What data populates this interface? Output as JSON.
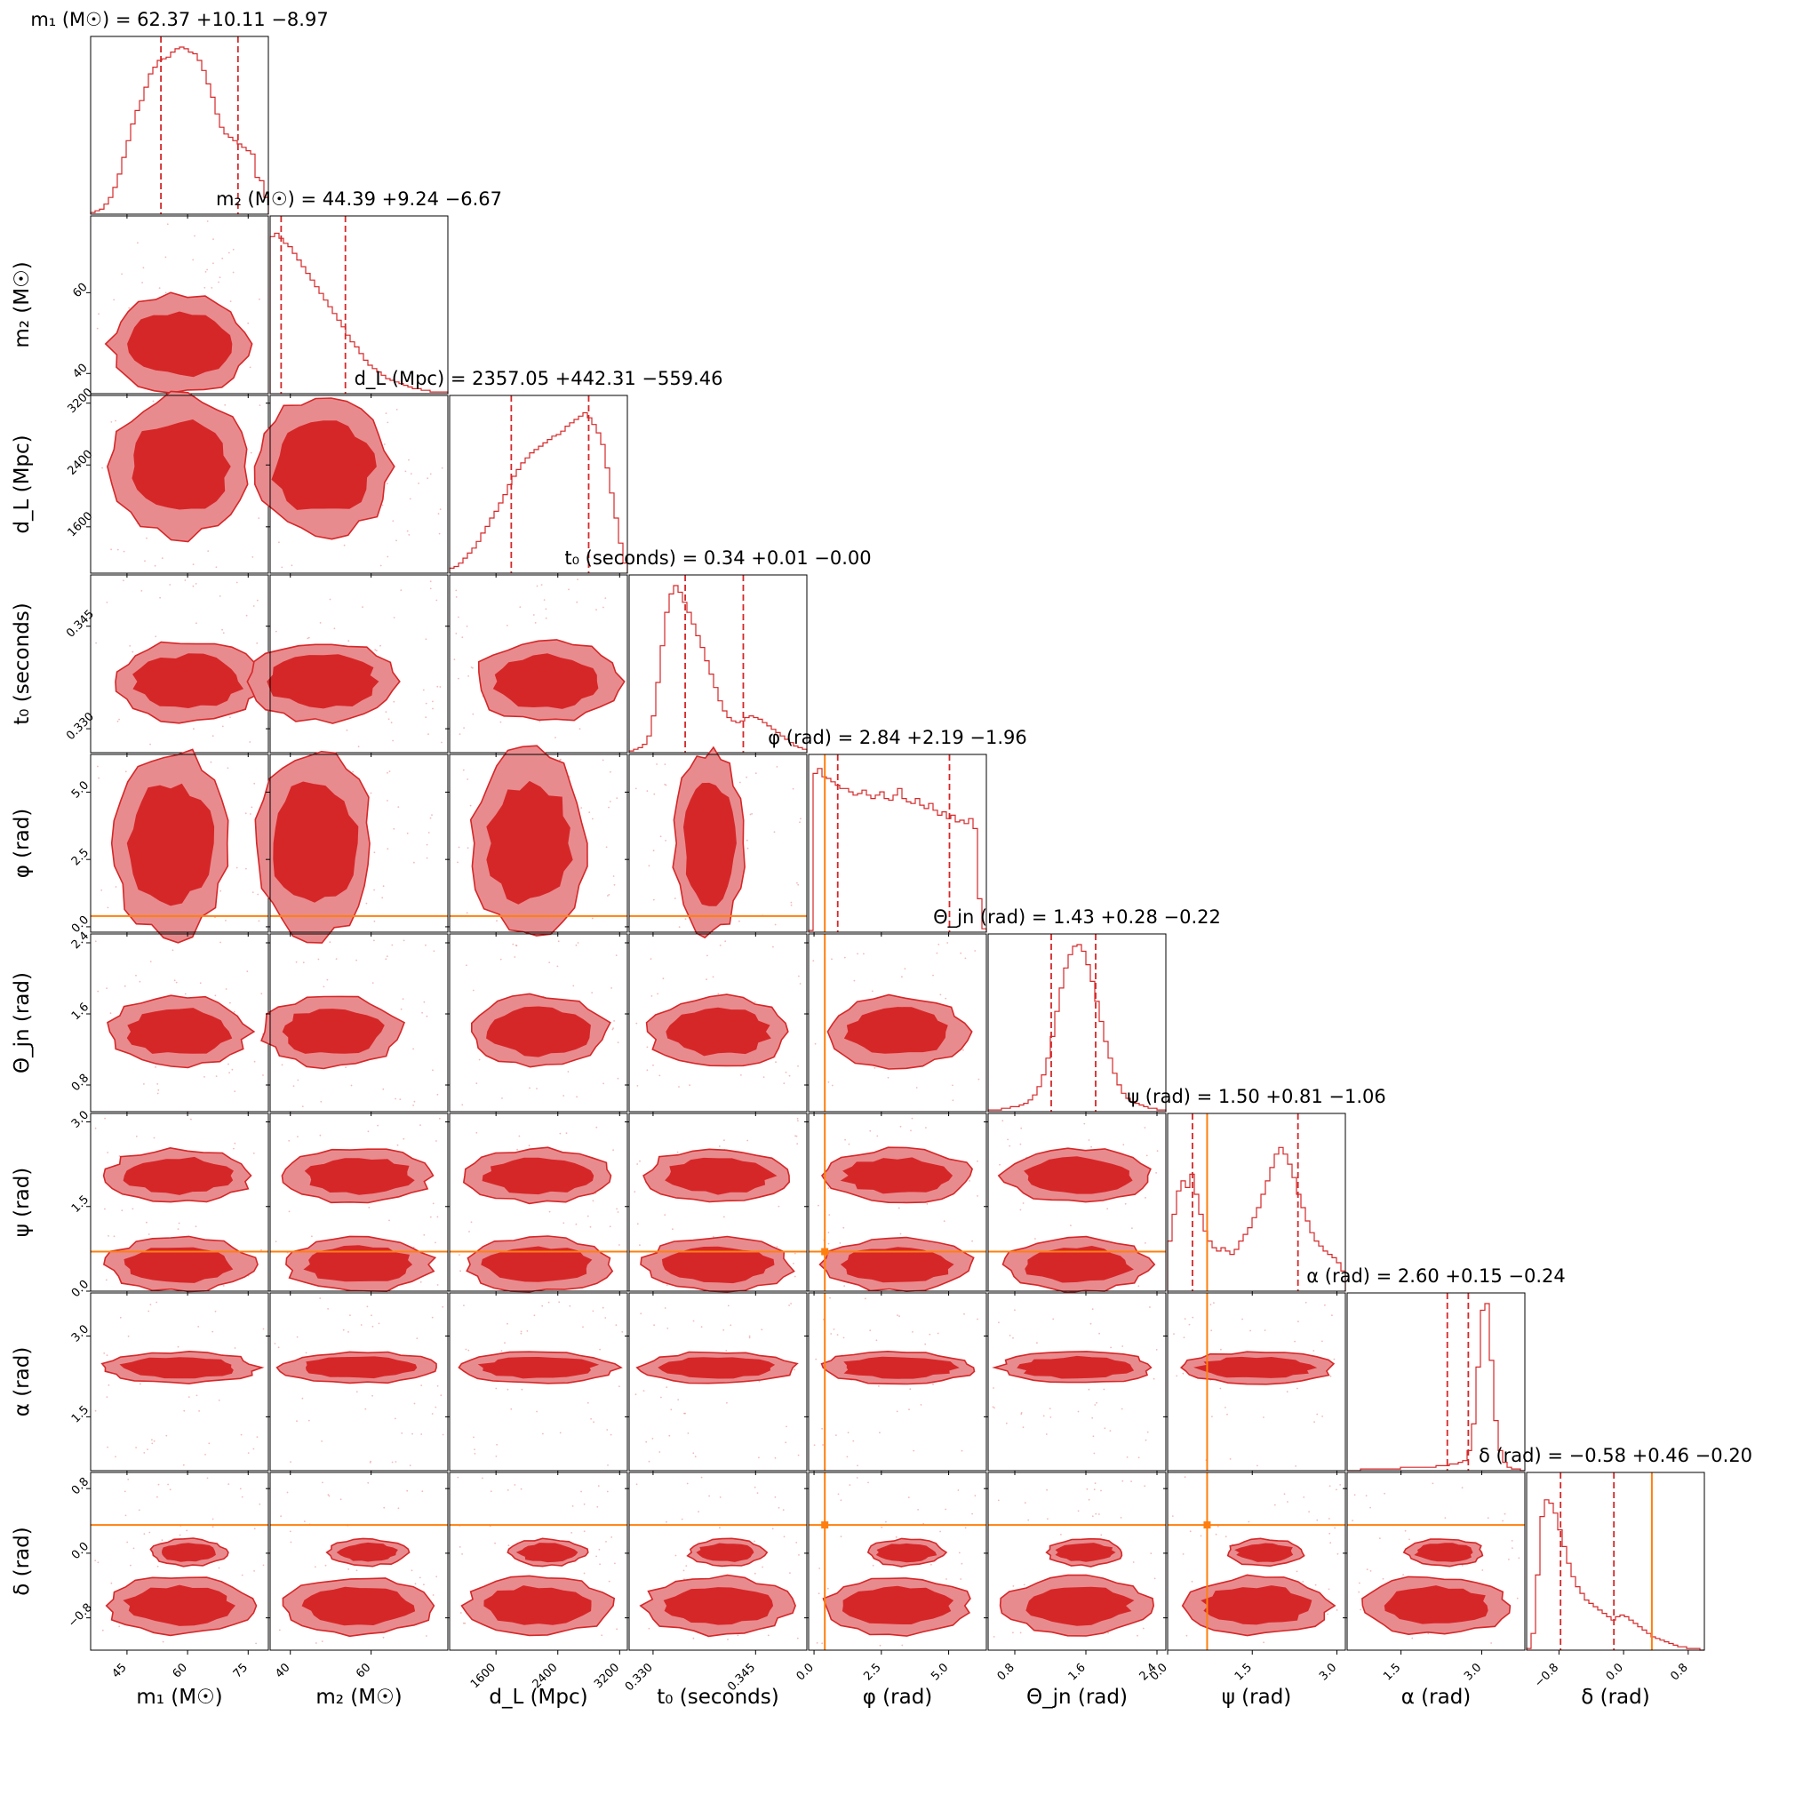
{
  "chart_data": {
    "type": "corner",
    "colors": {
      "posterior": "#d62728",
      "posterior_light": "#e88b8e",
      "truth": "#ff7f0e"
    },
    "parameters": [
      {
        "key": "m1",
        "label": "m₁ (M☉)",
        "title": "m₁ (M☉) = 62.37 +10.11 −8.97",
        "range": [
          36,
          80
        ],
        "ticks": [
          "45",
          "60",
          "75"
        ],
        "tick_values": [
          45,
          60,
          75
        ],
        "median": 62.37,
        "quantile_low": 53.4,
        "quantile_high": 72.48,
        "truth": null
      },
      {
        "key": "m2",
        "label": "m₂ (M☉)",
        "title": "m₂ (M☉) = 44.39 +9.24 −6.67",
        "range": [
          35,
          79
        ],
        "ticks": [
          "40",
          "60"
        ],
        "tick_values": [
          40,
          60
        ],
        "median": 44.39,
        "quantile_low": 37.72,
        "quantile_high": 53.63,
        "truth": null
      },
      {
        "key": "dL",
        "label": "d_L (Mpc)",
        "title": "d_L (Mpc) = 2357.05 +442.31 −559.46",
        "range": [
          1000,
          3300
        ],
        "ticks": [
          "1600",
          "2400",
          "3200"
        ],
        "tick_values": [
          1600,
          2400,
          3200
        ],
        "median": 2357.05,
        "quantile_low": 1797.59,
        "quantile_high": 2799.36,
        "truth": null
      },
      {
        "key": "t0",
        "label": "t₀ (seconds)",
        "title": "t₀ (seconds) = 0.34 +0.01 −0.00",
        "range": [
          0.3265,
          0.3525
        ],
        "ticks": [
          "0.330",
          "0.345"
        ],
        "tick_values": [
          0.33,
          0.345
        ],
        "median": 0.34,
        "quantile_low": 0.3347,
        "quantile_high": 0.3432,
        "truth": null
      },
      {
        "key": "phi",
        "label": "φ (rad)",
        "title": "φ (rad) = 2.84 +2.19 −1.96",
        "range": [
          -0.2,
          6.4
        ],
        "ticks": [
          "0.0",
          "2.5",
          "5.0"
        ],
        "tick_values": [
          0,
          2.5,
          5
        ],
        "median": 2.84,
        "quantile_low": 0.88,
        "quantile_high": 5.03,
        "truth": 0.4
      },
      {
        "key": "theta_jn",
        "label": "Θ_jn (rad)",
        "title": "Θ_jn (rad) = 1.43 +0.28 −0.22",
        "range": [
          0.5,
          2.5
        ],
        "ticks": [
          "0.8",
          "1.6",
          "2.4"
        ],
        "tick_values": [
          0.8,
          1.6,
          2.4
        ],
        "median": 1.43,
        "quantile_low": 1.21,
        "quantile_high": 1.71,
        "truth": null
      },
      {
        "key": "psi",
        "label": "ψ (rad)",
        "title": "ψ (rad) = 1.50 +0.81 −1.06",
        "range": [
          0,
          3.15
        ],
        "ticks": [
          "0.0",
          "1.5",
          "3.0"
        ],
        "tick_values": [
          0,
          1.5,
          3.0
        ],
        "median": 1.5,
        "quantile_low": 0.44,
        "quantile_high": 2.31,
        "truth": 0.7
      },
      {
        "key": "alpha",
        "label": "α (rad)",
        "title": "α (rad) = 2.60 +0.15 −0.24",
        "range": [
          0.5,
          3.8
        ],
        "ticks": [
          "1.5",
          "3.0"
        ],
        "tick_values": [
          1.5,
          3.0
        ],
        "median": 2.6,
        "quantile_low": 2.36,
        "quantile_high": 2.75,
        "truth": null
      },
      {
        "key": "delta",
        "label": "δ (rad)",
        "title": "δ (rad) = −0.58 +0.46 −0.20",
        "range": [
          -1.2,
          1.0
        ],
        "ticks": [
          "−0.8",
          "0.0",
          "0.8"
        ],
        "tick_values": [
          -0.8,
          0,
          0.8
        ],
        "median": -0.58,
        "quantile_low": -0.78,
        "quantile_high": -0.12,
        "truth": 0.35
      }
    ],
    "histograms": {
      "m1": [
        0.01,
        0.02,
        0.03,
        0.06,
        0.1,
        0.16,
        0.24,
        0.34,
        0.44,
        0.54,
        0.62,
        0.68,
        0.76,
        0.84,
        0.88,
        0.92,
        0.93,
        0.94,
        0.97,
        0.99,
        1.0,
        0.99,
        0.97,
        0.96,
        0.92,
        0.86,
        0.78,
        0.7,
        0.6,
        0.52,
        0.48,
        0.46,
        0.44,
        0.42,
        0.4,
        0.38,
        0.36,
        0.22,
        0.2,
        0.1
      ],
      "m2": [
        0.94,
        0.96,
        0.93,
        0.9,
        0.88,
        0.84,
        0.8,
        0.76,
        0.72,
        0.68,
        0.64,
        0.6,
        0.56,
        0.52,
        0.48,
        0.44,
        0.4,
        0.35,
        0.31,
        0.28,
        0.24,
        0.2,
        0.17,
        0.15,
        0.13,
        0.11,
        0.09,
        0.08,
        0.07,
        0.06,
        0.05,
        0.04,
        0.03,
        0.03,
        0.02,
        0.02,
        0.01,
        0.01,
        0.01,
        0.01
      ],
      "dL": [
        0.03,
        0.04,
        0.06,
        0.09,
        0.12,
        0.15,
        0.19,
        0.24,
        0.28,
        0.33,
        0.37,
        0.42,
        0.47,
        0.53,
        0.58,
        0.62,
        0.66,
        0.69,
        0.72,
        0.74,
        0.76,
        0.78,
        0.8,
        0.82,
        0.83,
        0.85,
        0.88,
        0.9,
        0.92,
        0.94,
        0.96,
        0.93,
        0.89,
        0.84,
        0.77,
        0.63,
        0.48,
        0.33,
        0.18,
        0.06
      ],
      "t0": [
        0.01,
        0.02,
        0.03,
        0.05,
        0.1,
        0.22,
        0.42,
        0.64,
        0.84,
        0.95,
        1.0,
        0.96,
        0.9,
        0.84,
        0.77,
        0.7,
        0.63,
        0.55,
        0.47,
        0.39,
        0.31,
        0.25,
        0.21,
        0.19,
        0.18,
        0.19,
        0.21,
        0.22,
        0.21,
        0.2,
        0.18,
        0.16,
        0.14,
        0.12,
        0.1,
        0.08,
        0.06,
        0.04,
        0.03,
        0.02
      ],
      "phi": [
        0.01,
        0.95,
        0.98,
        0.93,
        0.92,
        0.9,
        0.88,
        0.86,
        0.86,
        0.84,
        0.82,
        0.83,
        0.85,
        0.82,
        0.8,
        0.82,
        0.84,
        0.8,
        0.79,
        0.82,
        0.86,
        0.8,
        0.78,
        0.77,
        0.8,
        0.76,
        0.74,
        0.77,
        0.73,
        0.7,
        0.72,
        0.68,
        0.7,
        0.66,
        0.67,
        0.65,
        0.68,
        0.62,
        0.2,
        0.02
      ],
      "theta_jn": [
        0.01,
        0.01,
        0.01,
        0.02,
        0.02,
        0.03,
        0.03,
        0.04,
        0.05,
        0.07,
        0.1,
        0.15,
        0.22,
        0.32,
        0.45,
        0.6,
        0.74,
        0.86,
        0.94,
        0.99,
        1.0,
        0.96,
        0.88,
        0.78,
        0.66,
        0.54,
        0.42,
        0.32,
        0.23,
        0.16,
        0.11,
        0.08,
        0.06,
        0.05,
        0.04,
        0.03,
        0.02,
        0.02,
        0.01,
        0.01
      ],
      "psi": [
        0.3,
        0.46,
        0.6,
        0.66,
        0.62,
        0.7,
        0.58,
        0.46,
        0.36,
        0.3,
        0.26,
        0.24,
        0.26,
        0.24,
        0.22,
        0.25,
        0.3,
        0.34,
        0.38,
        0.44,
        0.5,
        0.58,
        0.66,
        0.74,
        0.82,
        0.86,
        0.82,
        0.76,
        0.68,
        0.58,
        0.5,
        0.42,
        0.35,
        0.3,
        0.27,
        0.24,
        0.22,
        0.2,
        0.17,
        0.12
      ],
      "alpha": [
        0.0,
        0.0,
        0.0,
        0.01,
        0.01,
        0.01,
        0.01,
        0.01,
        0.01,
        0.01,
        0.01,
        0.01,
        0.02,
        0.02,
        0.02,
        0.02,
        0.02,
        0.02,
        0.02,
        0.02,
        0.03,
        0.03,
        0.03,
        0.04,
        0.04,
        0.05,
        0.06,
        0.12,
        0.28,
        0.62,
        0.96,
        1.0,
        0.66,
        0.3,
        0.12,
        0.05,
        0.02,
        0.01,
        0.01,
        0.0
      ],
      "delta": [
        0.01,
        0.1,
        0.45,
        0.8,
        0.9,
        0.88,
        0.82,
        0.72,
        0.62,
        0.52,
        0.44,
        0.38,
        0.34,
        0.3,
        0.28,
        0.26,
        0.24,
        0.22,
        0.2,
        0.18,
        0.2,
        0.21,
        0.2,
        0.18,
        0.16,
        0.14,
        0.12,
        0.1,
        0.08,
        0.07,
        0.06,
        0.05,
        0.04,
        0.03,
        0.02,
        0.02,
        0.01,
        0.01,
        0.01,
        0.0
      ]
    }
  }
}
